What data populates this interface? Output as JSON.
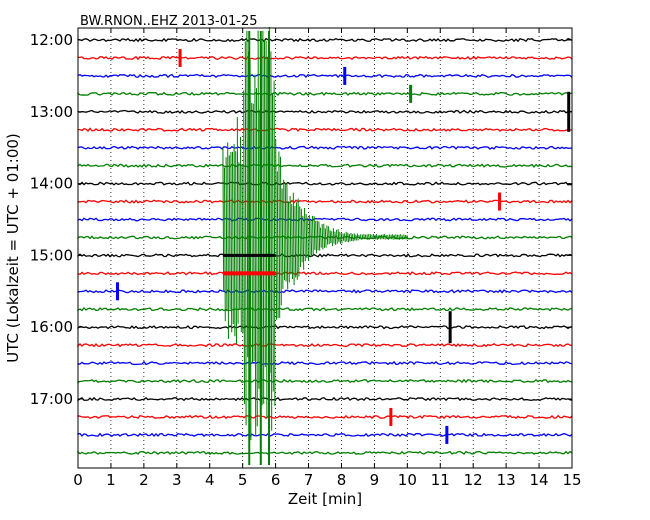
{
  "chart_data": {
    "type": "line",
    "title": "BW.RNON..EHZ 2013-01-25",
    "xlabel": "Zeit  [min]",
    "ylabel": "UTC (Lokalzeit = UTC + 01:00)",
    "xlim": [
      0,
      15
    ],
    "x_ticks": [
      "0",
      "1",
      "2",
      "3",
      "4",
      "5",
      "6",
      "7",
      "8",
      "9",
      "10",
      "11",
      "12",
      "13",
      "14",
      "15"
    ],
    "y_tick_labels": [
      "12:00",
      "13:00",
      "14:00",
      "15:00",
      "16:00",
      "17:00"
    ],
    "grid": "dotted vertical at each minute",
    "trace_colors": [
      "#000000",
      "#ff0000",
      "#0000ff",
      "#007f00"
    ],
    "trace_start_times": [
      "12:00",
      "12:15",
      "12:30",
      "12:45",
      "13:00",
      "13:15",
      "13:30",
      "13:45",
      "14:00",
      "14:15",
      "14:30",
      "14:45",
      "15:00",
      "15:15",
      "15:30",
      "15:45",
      "16:00",
      "16:15",
      "16:30",
      "16:45",
      "17:00",
      "17:15",
      "17:30",
      "17:45"
    ],
    "event": {
      "description": "earthquake",
      "onset_min": 4.4,
      "peak_min": 5.5,
      "coda_end_min": 10.0,
      "traces_affected": [
        "14:00",
        "17:30"
      ]
    },
    "spikes": [
      {
        "trace": "12:15",
        "x_min": 3.1
      },
      {
        "trace": "12:30",
        "x_min": 8.1
      },
      {
        "trace": "12:45",
        "x_min": 10.1
      },
      {
        "trace": "13:00",
        "x_min": 14.9
      },
      {
        "trace": "14:15",
        "x_min": 12.8
      },
      {
        "trace": "15:30",
        "x_min": 1.2
      },
      {
        "trace": "16:00",
        "x_min": 11.3
      },
      {
        "trace": "17:15",
        "x_min": 9.5
      },
      {
        "trace": "17:30",
        "x_min": 11.2
      }
    ]
  }
}
